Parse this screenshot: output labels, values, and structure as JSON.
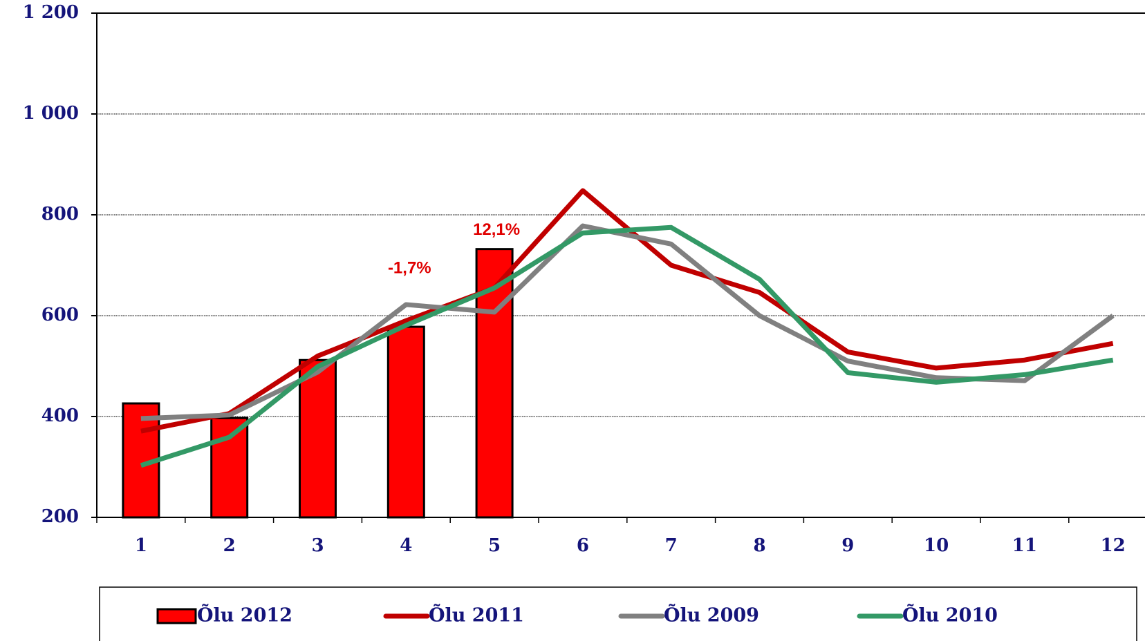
{
  "chart_data": {
    "type": "bar-line",
    "categories": [
      "1",
      "2",
      "3",
      "4",
      "5",
      "6",
      "7",
      "8",
      "9",
      "10",
      "11",
      "12"
    ],
    "series": [
      {
        "name": "Õlu 2012",
        "type": "bar",
        "color": "#ff0000",
        "values": [
          426,
          397,
          512,
          578,
          732,
          null,
          null,
          null,
          null,
          null,
          null,
          null
        ]
      },
      {
        "name": "Õlu 2011",
        "type": "line",
        "color": "#c00000",
        "values": [
          371,
          406,
          520,
          590,
          655,
          848,
          700,
          646,
          528,
          496,
          512,
          545
        ]
      },
      {
        "name": "Õlu 2009",
        "type": "line",
        "color": "#808080",
        "values": [
          396,
          403,
          488,
          622,
          607,
          778,
          742,
          600,
          510,
          477,
          471,
          600
        ]
      },
      {
        "name": "Õlu 2010",
        "type": "line",
        "color": "#339966",
        "values": [
          303,
          359,
          499,
          581,
          655,
          764,
          775,
          672,
          487,
          468,
          483,
          512
        ]
      }
    ],
    "annotations": [
      {
        "text": "-1,7%",
        "category": "4"
      },
      {
        "text": "12,1%",
        "category": "5"
      }
    ],
    "ylim": [
      200,
      1200
    ],
    "yticks": [
      200,
      400,
      600,
      800,
      {
        "value": 1000,
        "label": "1 000"
      },
      {
        "value": 1200,
        "label": "1 200"
      }
    ],
    "grid": true,
    "legend": "bottom"
  }
}
